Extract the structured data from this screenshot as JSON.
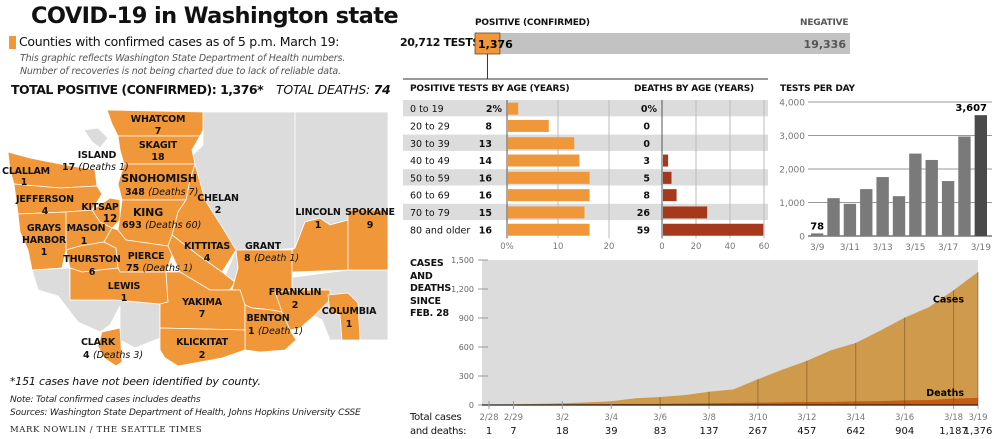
{
  "title": "COVID-19 in Washington state",
  "legend": {
    "text": "Counties with confirmed cases as of 5 p.m. March 19:",
    "color": "#f0973a",
    "note_line1": "This graphic reflects Washington State Department of Health numbers.",
    "note_line2": "Number of recoveries is not being charted due to lack of reliable data."
  },
  "totals": {
    "positive_label": "TOTAL POSITIVE (CONFIRMED): 1,376*",
    "deaths_label": "TOTAL DEATHS: ",
    "deaths_value": "74"
  },
  "map": {
    "colors": {
      "confirmed": "#f0973a",
      "none": "#dcdcdc",
      "border": "#ffffff"
    },
    "counties": [
      {
        "name": "WHATCOM",
        "value": "7",
        "deaths": ""
      },
      {
        "name": "SKAGIT",
        "value": "18",
        "deaths": ""
      },
      {
        "name": "ISLAND",
        "value": "17",
        "deaths": "(Deaths 1)"
      },
      {
        "name": "CLALLAM",
        "value": "1",
        "deaths": ""
      },
      {
        "name": "SNOHOMISH",
        "value": "348",
        "deaths": "(Deaths 7)"
      },
      {
        "name": "JEFFERSON",
        "value": "4",
        "deaths": ""
      },
      {
        "name": "KITSAP",
        "value": "12",
        "deaths": ""
      },
      {
        "name": "KING",
        "value": "693",
        "deaths": "(Deaths 60)"
      },
      {
        "name": "CHELAN",
        "value": "2",
        "deaths": ""
      },
      {
        "name": "GRAYS",
        "name2": "HARBOR",
        "value": "1",
        "deaths": ""
      },
      {
        "name": "MASON",
        "value": "1",
        "deaths": ""
      },
      {
        "name": "THURSTON",
        "value": "6",
        "deaths": ""
      },
      {
        "name": "PIERCE",
        "value": "75",
        "deaths": "(Deaths 1)"
      },
      {
        "name": "KITTITAS",
        "value": "4",
        "deaths": ""
      },
      {
        "name": "GRANT",
        "value": "8",
        "deaths": "(Death 1)"
      },
      {
        "name": "LINCOLN",
        "value": "1",
        "deaths": ""
      },
      {
        "name": "SPOKANE",
        "value": "9",
        "deaths": ""
      },
      {
        "name": "LEWIS",
        "value": "1",
        "deaths": ""
      },
      {
        "name": "YAKIMA",
        "value": "7",
        "deaths": ""
      },
      {
        "name": "FRANKLIN",
        "value": "2",
        "deaths": ""
      },
      {
        "name": "BENTON",
        "value": "1",
        "deaths": "(Death 1)"
      },
      {
        "name": "COLUMBIA",
        "value": "1",
        "deaths": ""
      },
      {
        "name": "CLARK",
        "value": "4",
        "deaths": "(Deaths 3)"
      },
      {
        "name": "KLICKITAT",
        "value": "2",
        "deaths": ""
      }
    ]
  },
  "footnote": "*151 cases have not been identified by county.",
  "note": "Note: Total confirmed cases includes deaths",
  "sources": "Sources: Washington State Department of Health, Johns Hopkins University CSSE",
  "credit": "MARK NOWLIN / THE SEATTLE TIMES",
  "chart_data": [
    {
      "type": "bar",
      "title": "TESTS",
      "total_label": "20,712 TESTS",
      "positive_header": "POSITIVE (CONFIRMED)",
      "negative_header": "NEGATIVE",
      "categories": [
        "Positive (confirmed)",
        "Negative"
      ],
      "values": [
        1376,
        19336
      ],
      "value_labels": [
        "1,376",
        "19,336"
      ],
      "total": 20712,
      "colors": {
        "positive": "#f0973a",
        "negative": "#c2c2c2"
      }
    },
    {
      "type": "bar",
      "title": "POSITIVE TESTS BY AGE (YEARS)",
      "categories": [
        "0 to 19",
        "20 to 29",
        "30 to 39",
        "40 to 49",
        "50 to 59",
        "60 to 69",
        "70 to 79",
        "80 and older"
      ],
      "values": [
        2,
        8,
        13,
        14,
        16,
        16,
        15,
        16
      ],
      "value_labels": [
        "2%",
        "8",
        "13",
        "14",
        "16",
        "16",
        "15",
        "16"
      ],
      "xlim": [
        0,
        20
      ],
      "ticks": [
        "0%",
        "10",
        "20"
      ],
      "color": "#f0973a"
    },
    {
      "type": "bar",
      "title": "DEATHS BY AGE (YEARS)",
      "categories": [
        "0 to 19",
        "20 to 29",
        "30 to 39",
        "40 to 49",
        "50 to 59",
        "60 to 69",
        "70 to 79",
        "80 and older"
      ],
      "values": [
        0,
        0,
        0,
        3,
        5,
        8,
        26,
        59
      ],
      "value_labels": [
        "0%",
        "0",
        "0",
        "3",
        "5",
        "8",
        "26",
        "59"
      ],
      "xlim": [
        0,
        60
      ],
      "ticks": [
        "0",
        "20",
        "40",
        "60"
      ],
      "color": "#a6381c"
    },
    {
      "type": "bar",
      "title": "TESTS PER DAY",
      "categories": [
        "3/9",
        "3/10",
        "3/11",
        "3/12",
        "3/13",
        "3/14",
        "3/15",
        "3/16",
        "3/17",
        "3/18",
        "3/19"
      ],
      "values": [
        78,
        1130,
        960,
        1400,
        1760,
        1190,
        2460,
        2270,
        1640,
        2970,
        3607
      ],
      "labels": {
        "first": "78",
        "last": "3,607"
      },
      "tick_labels": [
        "3/9",
        "3/11",
        "3/13",
        "3/15",
        "3/17",
        "3/19"
      ],
      "ylim": [
        0,
        4000
      ],
      "yticks": [
        "0",
        "1,000",
        "2,000",
        "3,000",
        "4,000"
      ],
      "color": "#7a7a7a",
      "highlight_color": "#4a4a4a"
    },
    {
      "type": "area",
      "title_lines": [
        "CASES",
        "AND",
        "DEATHS",
        "SINCE",
        "FEB. 28"
      ],
      "x": [
        "2/28",
        "2/29",
        "3/1",
        "3/2",
        "3/3",
        "3/4",
        "3/5",
        "3/6",
        "3/7",
        "3/8",
        "3/9",
        "3/10",
        "3/11",
        "3/12",
        "3/13",
        "3/14",
        "3/15",
        "3/16",
        "3/17",
        "3/18",
        "3/19"
      ],
      "series": [
        {
          "name": "Cases",
          "values": [
            1,
            7,
            12,
            18,
            27,
            39,
            70,
            83,
            102,
            137,
            162,
            267,
            366,
            457,
            568,
            642,
            769,
            904,
            1012,
            1187,
            1376
          ],
          "color": "#d09a4c"
        },
        {
          "name": "Deaths",
          "values": [
            0,
            1,
            3,
            6,
            9,
            10,
            11,
            12,
            16,
            18,
            22,
            24,
            29,
            31,
            32,
            37,
            40,
            48,
            52,
            66,
            74
          ],
          "color": "#c45d12"
        }
      ],
      "ylim": [
        0,
        1500
      ],
      "yticks": [
        "0",
        "300",
        "600",
        "900",
        "1,200",
        "1,500"
      ],
      "tick_labels": [
        "2/28",
        "2/29",
        "3/2",
        "3/4",
        "3/6",
        "3/8",
        "3/10",
        "3/12",
        "3/14",
        "3/16",
        "3/18",
        "3/19"
      ],
      "totals_label_line1": "Total cases",
      "totals_label_line2": "and deaths:",
      "totals": [
        "1",
        "7",
        "18",
        "39",
        "83",
        "137",
        "267",
        "457",
        "642",
        "904",
        "1,187",
        "1,376"
      ]
    }
  ]
}
